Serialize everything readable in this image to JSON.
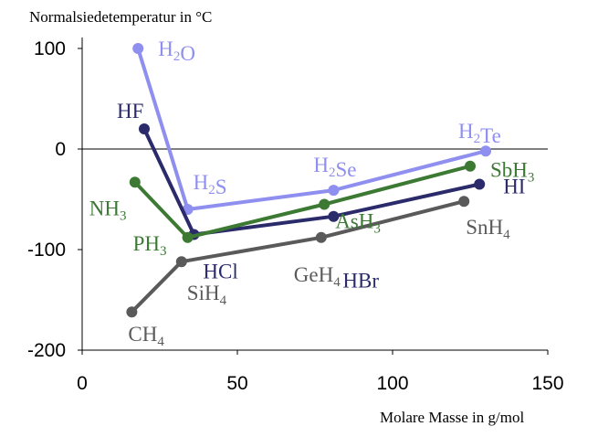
{
  "chart_data": {
    "type": "line",
    "title": "",
    "ylabel": "Normalsiedetemperatur in °C",
    "xlabel": "Molare Masse in g/mol",
    "xlim": [
      0,
      150
    ],
    "ylim": [
      -200,
      100
    ],
    "xticks": [
      "0",
      "50",
      "100",
      "150"
    ],
    "yticks": [
      "100",
      "0",
      "-100",
      "-200"
    ],
    "xtick_values": [
      0,
      50,
      100,
      150
    ],
    "ytick_values": [
      100,
      0,
      -100,
      -200
    ],
    "grid": false,
    "series": [
      {
        "color": "#8f8fef",
        "points": [
          {
            "x": 18,
            "y": 100,
            "label": "H2O",
            "color": "#8f8fef"
          },
          {
            "x": 34,
            "y": -60,
            "label": "H2S",
            "color": "#8f8fef"
          },
          {
            "x": 81,
            "y": -41,
            "label": "H2Se",
            "color": "#8f8fef"
          },
          {
            "x": 130,
            "y": -2,
            "label": "H2Te",
            "color": "#8f8fef"
          }
        ]
      },
      {
        "color": "#2b2b6b",
        "points": [
          {
            "x": 20,
            "y": 20,
            "label": "HF",
            "color": "#2b2b6b"
          },
          {
            "x": 36,
            "y": -85,
            "label": "HCl",
            "color": "#2b2b6b"
          },
          {
            "x": 81,
            "y": -67,
            "label": "HBr",
            "color": "#2b2b6b"
          },
          {
            "x": 128,
            "y": -35,
            "label": "HI",
            "color": "#2b2b6b"
          }
        ]
      },
      {
        "color": "#3c7a34",
        "points": [
          {
            "x": 17,
            "y": -33,
            "label": "NH3",
            "color": "#3c7a34"
          },
          {
            "x": 34,
            "y": -88,
            "label": "PH3",
            "color": "#3c7a34"
          },
          {
            "x": 78,
            "y": -55,
            "label": "AsH3",
            "color": "#3c7a34"
          },
          {
            "x": 125,
            "y": -17,
            "label": "SbH3",
            "color": "#3c7a34"
          }
        ]
      },
      {
        "color": "#5a5a5a",
        "points": [
          {
            "x": 16,
            "y": -162,
            "label": "CH4",
            "color": "#5a5a5a"
          },
          {
            "x": 32,
            "y": -112,
            "label": "SiH4",
            "color": "#5a5a5a"
          },
          {
            "x": 77,
            "y": -88,
            "label": "GeH4",
            "color": "#5a5a5a"
          },
          {
            "x": 123,
            "y": -52,
            "label": "SnH4",
            "color": "#5a5a5a"
          }
        ]
      }
    ]
  }
}
